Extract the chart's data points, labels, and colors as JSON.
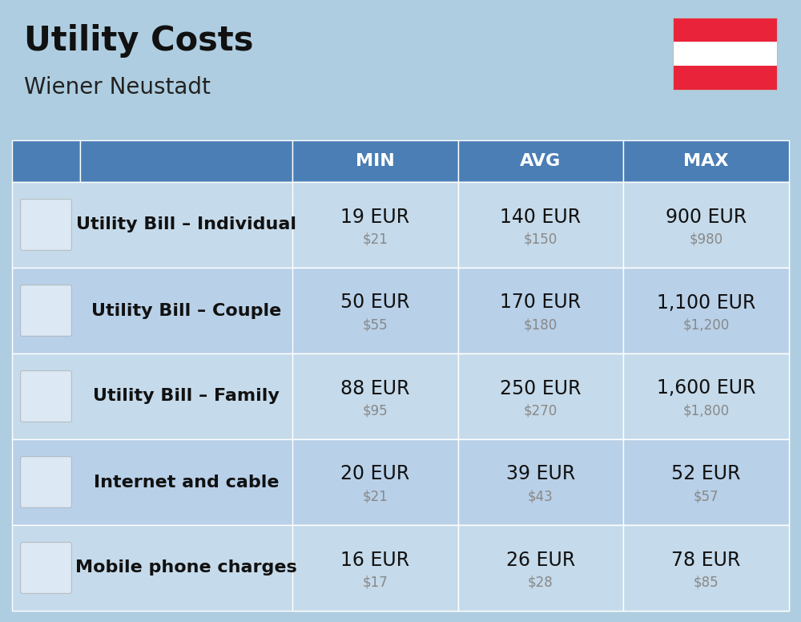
{
  "title": "Utility Costs",
  "subtitle": "Wiener Neustadt",
  "background_color": "#aecde0",
  "header_color": "#4a7eb5",
  "header_text_color": "#ffffff",
  "row_colors": [
    "#c5daea",
    "#b8d0e8"
  ],
  "col_headers": [
    "MIN",
    "AVG",
    "MAX"
  ],
  "rows": [
    {
      "label": "Utility Bill – Individual",
      "min_eur": "19 EUR",
      "min_usd": "$21",
      "avg_eur": "140 EUR",
      "avg_usd": "$150",
      "max_eur": "900 EUR",
      "max_usd": "$980"
    },
    {
      "label": "Utility Bill – Couple",
      "min_eur": "50 EUR",
      "min_usd": "$55",
      "avg_eur": "170 EUR",
      "avg_usd": "$180",
      "max_eur": "1,100 EUR",
      "max_usd": "$1,200"
    },
    {
      "label": "Utility Bill – Family",
      "min_eur": "88 EUR",
      "min_usd": "$95",
      "avg_eur": "250 EUR",
      "avg_usd": "$270",
      "max_eur": "1,600 EUR",
      "max_usd": "$1,800"
    },
    {
      "label": "Internet and cable",
      "min_eur": "20 EUR",
      "min_usd": "$21",
      "avg_eur": "39 EUR",
      "avg_usd": "$43",
      "max_eur": "52 EUR",
      "max_usd": "$57"
    },
    {
      "label": "Mobile phone charges",
      "min_eur": "16 EUR",
      "min_usd": "$17",
      "avg_eur": "26 EUR",
      "avg_usd": "$28",
      "max_eur": "78 EUR",
      "max_usd": "$85"
    }
  ],
  "flag_colors": [
    "#e8233a",
    "#ffffff",
    "#e8233a"
  ],
  "title_fontsize": 30,
  "subtitle_fontsize": 20,
  "eur_fontsize": 17,
  "usd_fontsize": 12,
  "label_fontsize": 16,
  "header_fontsize": 16
}
